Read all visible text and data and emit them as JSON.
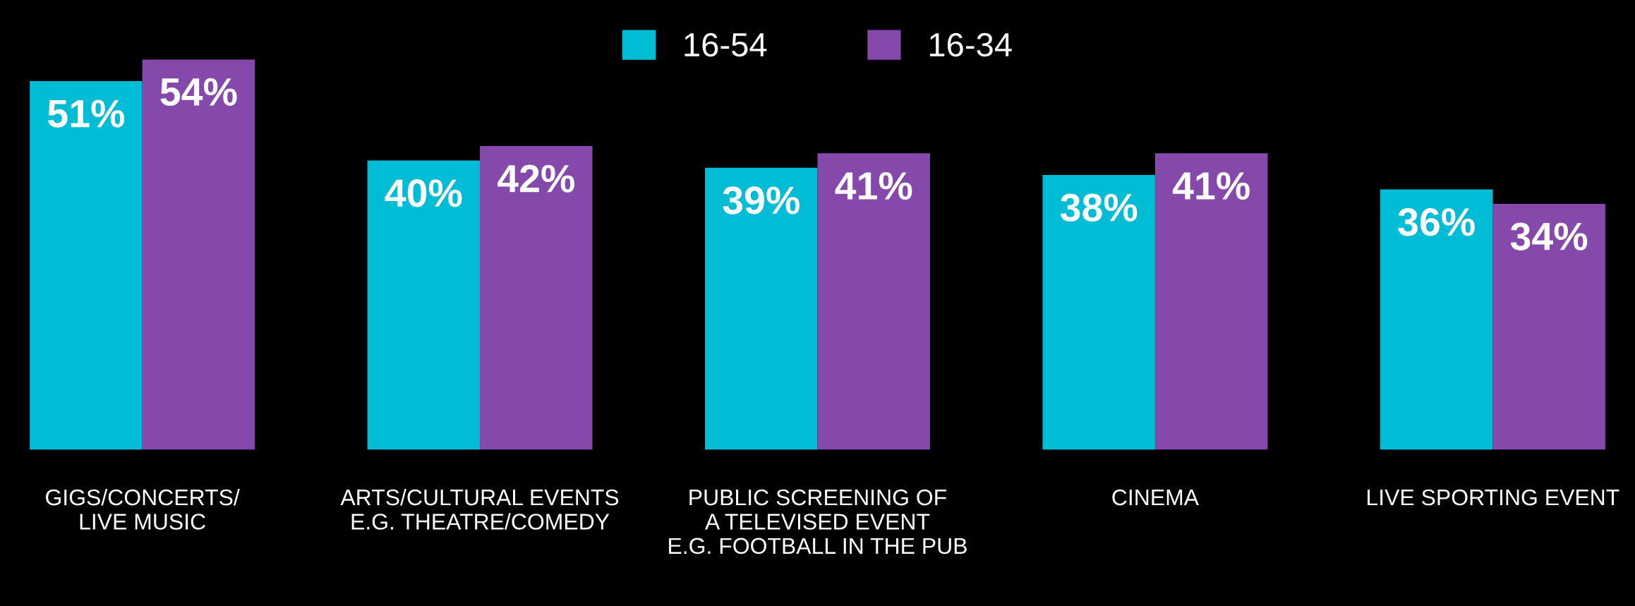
{
  "chart_data": {
    "type": "bar",
    "categories": [
      "GIGS/CONCERTS/\nLIVE MUSIC",
      "ARTS/CULTURAL EVENTS\nE.G. THEATRE/COMEDY",
      "PUBLIC SCREENING OF\nA TELEVISED EVENT\nE.G. FOOTBALL IN THE PUB",
      "CINEMA",
      "LIVE SPORTING EVENT"
    ],
    "series": [
      {
        "name": "16-54",
        "color": "#00bcd4",
        "values": [
          51,
          40,
          39,
          38,
          36
        ],
        "value_labels": [
          "51%",
          "40%",
          "39%",
          "38%",
          "36%"
        ]
      },
      {
        "name": "16-34",
        "color": "#8549ac",
        "values": [
          54,
          42,
          41,
          41,
          34
        ],
        "value_labels": [
          "54%",
          "42%",
          "41%",
          "41%",
          "34%"
        ]
      }
    ],
    "legend": "top",
    "grid": false
  }
}
